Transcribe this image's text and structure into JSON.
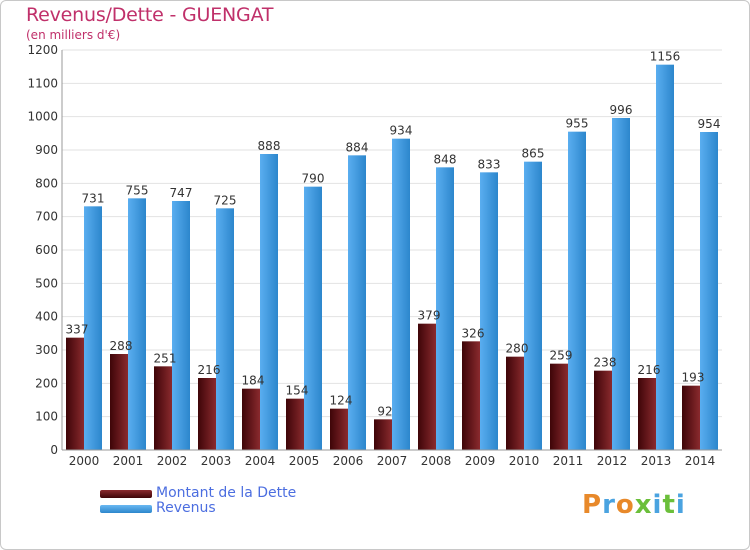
{
  "chart_data": {
    "type": "bar",
    "title": "Revenus/Dette - GUENGAT",
    "subtitle": "(en milliers d'€)",
    "categories": [
      "2000",
      "2001",
      "2002",
      "2003",
      "2004",
      "2005",
      "2006",
      "2007",
      "2008",
      "2009",
      "2010",
      "2011",
      "2012",
      "2013",
      "2014"
    ],
    "series": [
      {
        "name": "Montant de la Dette",
        "color": "#7a1e22",
        "values": [
          337,
          288,
          251,
          216,
          184,
          154,
          124,
          92,
          379,
          326,
          280,
          259,
          238,
          216,
          193
        ]
      },
      {
        "name": "Revenus",
        "color": "#3a9be0",
        "values": [
          731,
          755,
          747,
          725,
          888,
          790,
          884,
          934,
          848,
          833,
          865,
          955,
          996,
          1156,
          954
        ]
      }
    ],
    "ylim": [
      0,
      1200
    ],
    "yticks": [
      0,
      100,
      200,
      300,
      400,
      500,
      600,
      700,
      800,
      900,
      1000,
      1100,
      1200
    ],
    "grid": true,
    "legend_position": "bottom-left"
  },
  "brand": {
    "logo_letters": [
      "P",
      "r",
      "o",
      "x",
      "i",
      "t",
      "i"
    ],
    "logo_colors": [
      "#e8892a",
      "#4aa3e0",
      "#e8892a",
      "#6bbf3a",
      "#4aa3e0",
      "#6bbf3a",
      "#4aa3e0"
    ]
  }
}
